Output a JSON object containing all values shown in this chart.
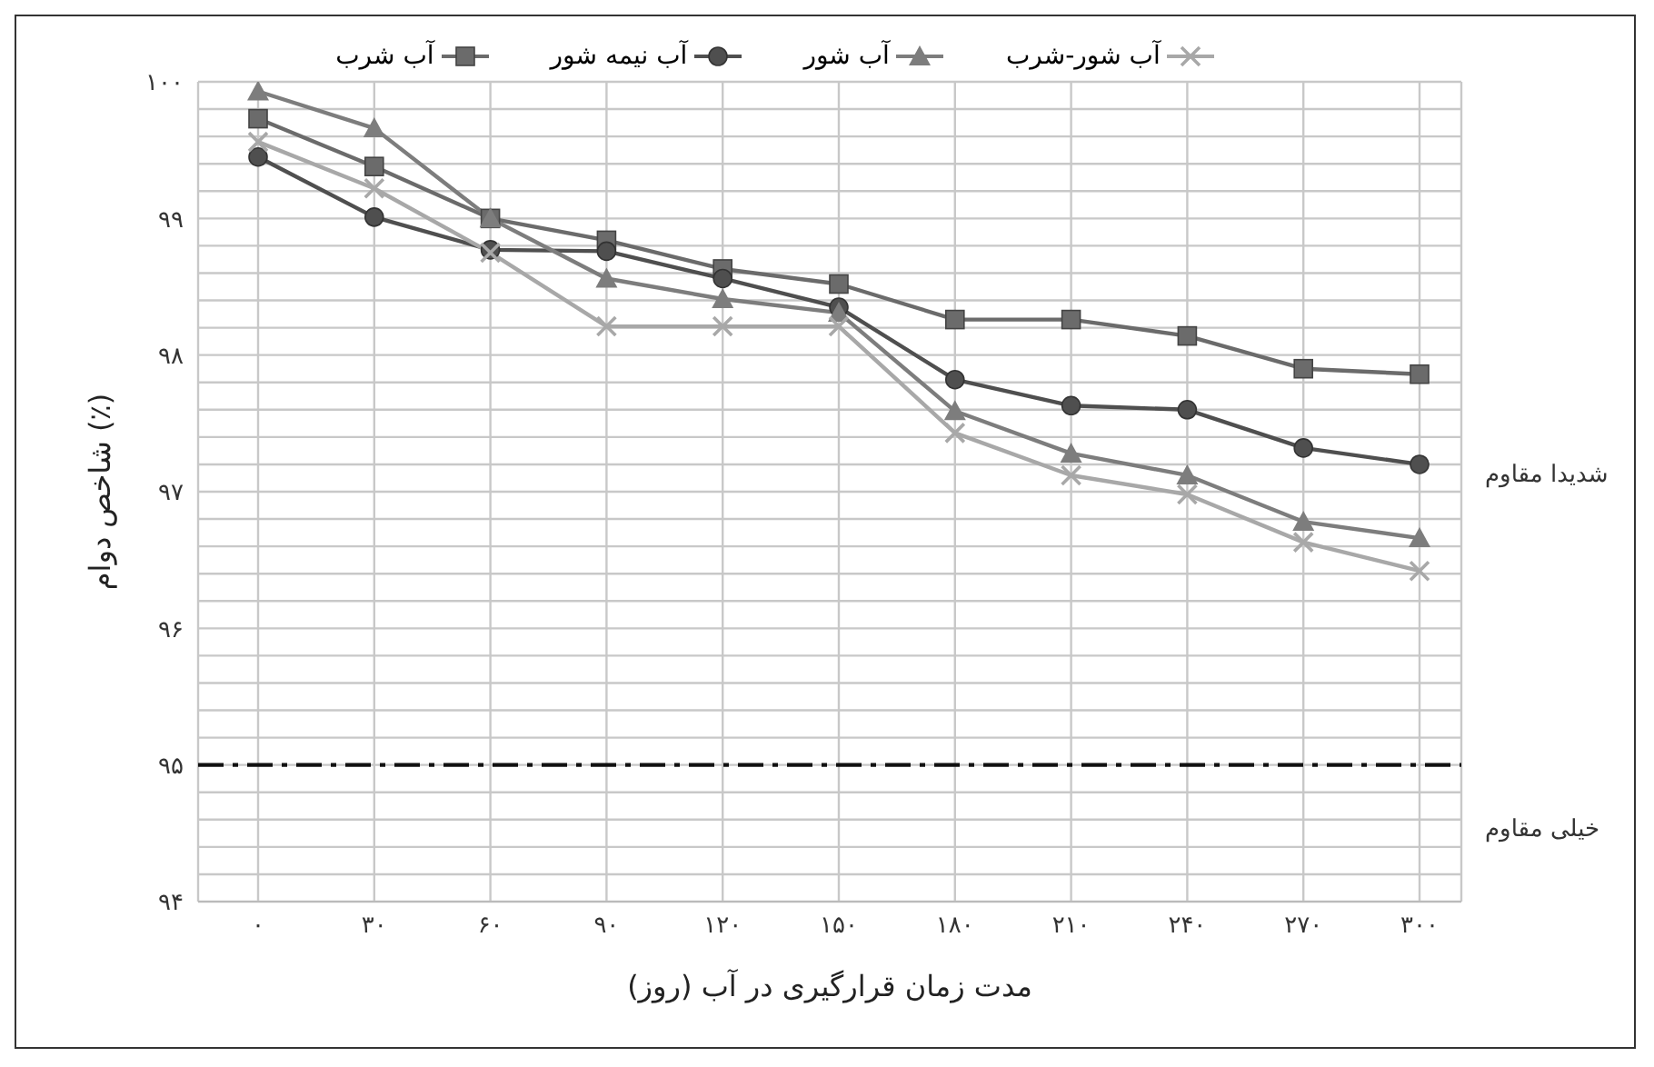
{
  "chart_data": {
    "type": "line",
    "xlabel": "مدت زمان قرارگیری در آب (روز)",
    "ylabel": "شاخص دوام (٪)",
    "categories": [
      "۰",
      "۳۰",
      "۶۰",
      "۹۰",
      "۱۲۰",
      "۱۵۰",
      "۱۸۰",
      "۲۱۰",
      "۲۴۰",
      "۲۷۰",
      "۳۰۰"
    ],
    "series": [
      {
        "name": "آب شرب",
        "color": "#6b6b6b",
        "marker": "square",
        "values": [
          99.73,
          99.38,
          99.0,
          98.84,
          98.63,
          98.52,
          98.26,
          98.26,
          98.14,
          97.9,
          97.86
        ]
      },
      {
        "name": "آب نیمه شور",
        "color": "#4f4f4f",
        "marker": "circle",
        "values": [
          99.45,
          99.01,
          98.77,
          98.76,
          98.56,
          98.35,
          97.82,
          97.63,
          97.6,
          97.32,
          97.2
        ]
      },
      {
        "name": "آب شور",
        "color": "#7d7d7d",
        "marker": "triangle",
        "values": [
          99.93,
          99.66,
          99.0,
          98.56,
          98.41,
          98.31,
          97.59,
          97.28,
          97.12,
          96.78,
          96.66
        ]
      },
      {
        "name": "آب شور-شرب",
        "color": "#a8a8a8",
        "marker": "cross",
        "values": [
          99.56,
          99.22,
          98.75,
          98.21,
          98.21,
          98.21,
          97.43,
          97.12,
          96.98,
          96.63,
          96.42
        ]
      }
    ],
    "ylim": [
      94,
      100
    ],
    "yticks": [
      {
        "value": 94,
        "label": "۹۴"
      },
      {
        "value": 94.2,
        "label": null
      },
      {
        "value": 94.4,
        "label": null
      },
      {
        "value": 94.6,
        "label": null
      },
      {
        "value": 94.8,
        "label": null
      },
      {
        "value": 95,
        "label": "۹۵"
      },
      {
        "value": 95.2,
        "label": null
      },
      {
        "value": 95.4,
        "label": null
      },
      {
        "value": 95.6,
        "label": null
      },
      {
        "value": 95.8,
        "label": null
      },
      {
        "value": 96,
        "label": "۹۶"
      },
      {
        "value": 96.2,
        "label": null
      },
      {
        "value": 96.4,
        "label": null
      },
      {
        "value": 96.6,
        "label": null
      },
      {
        "value": 96.8,
        "label": null
      },
      {
        "value": 97,
        "label": "۹۷"
      },
      {
        "value": 97.2,
        "label": null
      },
      {
        "value": 97.4,
        "label": null
      },
      {
        "value": 97.6,
        "label": null
      },
      {
        "value": 97.8,
        "label": null
      },
      {
        "value": 98,
        "label": "۹۸"
      },
      {
        "value": 98.2,
        "label": null
      },
      {
        "value": 98.4,
        "label": null
      },
      {
        "value": 98.6,
        "label": null
      },
      {
        "value": 98.8,
        "label": null
      },
      {
        "value": 99,
        "label": "۹۹"
      },
      {
        "value": 99.2,
        "label": null
      },
      {
        "value": 99.4,
        "label": null
      },
      {
        "value": 99.6,
        "label": null
      },
      {
        "value": 99.8,
        "label": null
      },
      {
        "value": 100,
        "label": "۱۰۰"
      }
    ],
    "ref_lines": [
      {
        "axis": "y",
        "value": 95,
        "label": null,
        "color": "#111111",
        "line_style": "dashdot"
      }
    ],
    "annotations": [
      "شدیدا مقاوم",
      "خیلی مقاوم"
    ],
    "grid": true,
    "legend": "top",
    "line_style": "solid"
  }
}
